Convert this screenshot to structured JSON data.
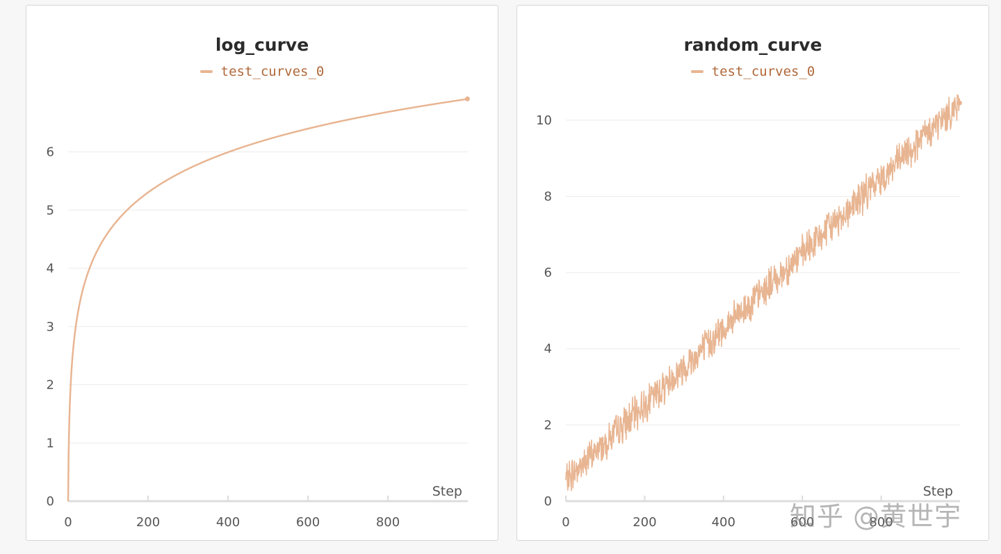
{
  "watermark": "知乎 @黄世宇",
  "colors": {
    "series": "#e8b592",
    "legend_text": "#b0683a",
    "grid": "#ebebeb",
    "axis": "#dcdcdc"
  },
  "chart_data": [
    {
      "type": "line",
      "title": "log_curve",
      "legend": [
        "test_curves_0"
      ],
      "xlabel": "Step",
      "ylabel": "",
      "xlim": [
        0,
        1000
      ],
      "ylim": [
        0,
        7.2
      ],
      "x_ticks": [
        0,
        200,
        400,
        600,
        800
      ],
      "y_ticks": [
        0,
        1,
        2,
        3,
        4,
        5,
        6
      ],
      "grid": true,
      "legend_position": "top-center",
      "series": [
        {
          "name": "test_curves_0",
          "function": "ln(x+1)",
          "x": [
            0,
            1,
            3,
            6,
            10,
            20,
            35,
            55,
            80,
            110,
            150,
            200,
            260,
            330,
            400,
            500,
            600,
            700,
            800,
            900,
            999
          ],
          "values": [
            0,
            0.69,
            1.39,
            1.95,
            2.4,
            3.04,
            3.58,
            4.03,
            4.39,
            4.71,
            5.02,
            5.3,
            5.56,
            5.8,
            5.99,
            6.22,
            6.4,
            6.55,
            6.69,
            6.8,
            6.91
          ],
          "endpoint_marker": true
        }
      ]
    },
    {
      "type": "line",
      "title": "random_curve",
      "legend": [
        "test_curves_0"
      ],
      "xlabel": "Step",
      "ylabel": "",
      "xlim": [
        0,
        1000
      ],
      "ylim": [
        0,
        11
      ],
      "x_ticks": [
        0,
        200,
        400,
        600,
        800
      ],
      "y_ticks": [
        0,
        2,
        4,
        6,
        8,
        10
      ],
      "grid": true,
      "legend_position": "top-center",
      "series": [
        {
          "name": "test_curves_0",
          "trend": "linear from 0.5 at step 0 to 10.5 at step 1000 with random noise",
          "x": [
            0,
            100,
            200,
            300,
            400,
            500,
            600,
            700,
            800,
            900,
            999
          ],
          "values": [
            0.55,
            1.5,
            2.5,
            3.5,
            4.5,
            5.5,
            6.5,
            7.5,
            8.5,
            9.5,
            10.45
          ],
          "noise_amplitude": 0.35,
          "endpoint_marker": true
        }
      ]
    }
  ]
}
